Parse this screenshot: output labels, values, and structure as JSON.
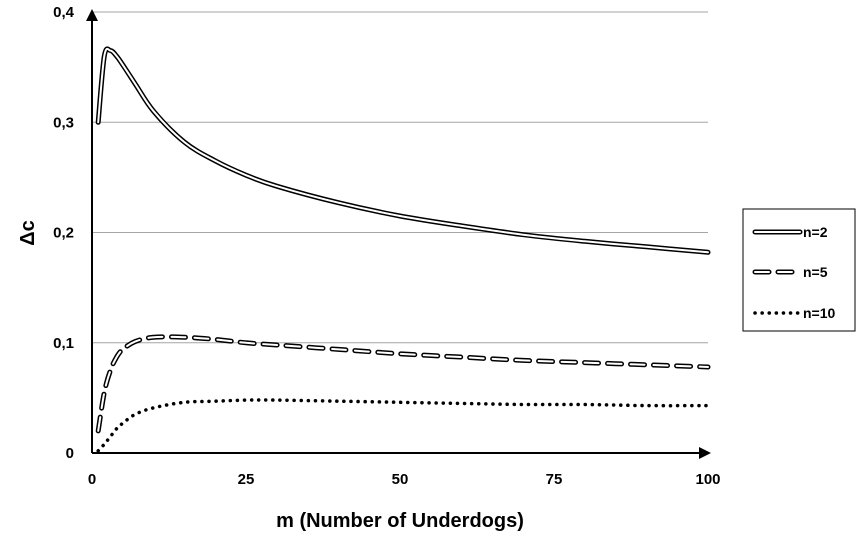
{
  "chart_data": {
    "type": "line",
    "xlabel": "m (Number of Underdogs)",
    "ylabel": "Δc",
    "xlim": [
      0,
      100
    ],
    "ylim": [
      0,
      0.4
    ],
    "x_ticks": [
      0,
      25,
      50,
      75,
      100
    ],
    "x_tick_labels": [
      "0",
      "25",
      "50",
      "75",
      "100"
    ],
    "y_ticks": [
      0,
      0.1,
      0.2,
      0.3,
      0.4
    ],
    "y_tick_labels": [
      "0",
      "0,1",
      "0,2",
      "0,3",
      "0,4"
    ],
    "grid": "horizontal",
    "legend_position": "right",
    "series": [
      {
        "name": "n=2",
        "style": "double",
        "x": [
          1,
          2,
          3,
          4,
          5,
          7,
          10,
          15,
          20,
          25,
          30,
          40,
          50,
          60,
          70,
          80,
          90,
          100
        ],
        "values": [
          0.3,
          0.36,
          0.365,
          0.36,
          0.352,
          0.335,
          0.31,
          0.282,
          0.265,
          0.252,
          0.242,
          0.227,
          0.215,
          0.206,
          0.198,
          0.192,
          0.187,
          0.182
        ]
      },
      {
        "name": "n=5",
        "style": "dashed",
        "x": [
          1,
          2,
          3,
          4,
          5,
          7,
          10,
          15,
          20,
          25,
          30,
          40,
          50,
          60,
          70,
          80,
          90,
          100
        ],
        "values": [
          0.02,
          0.055,
          0.075,
          0.087,
          0.094,
          0.101,
          0.105,
          0.105,
          0.103,
          0.1,
          0.098,
          0.094,
          0.09,
          0.087,
          0.084,
          0.082,
          0.08,
          0.078
        ]
      },
      {
        "name": "n=10",
        "style": "dotted",
        "x": [
          1,
          2,
          3,
          4,
          5,
          7,
          10,
          15,
          20,
          25,
          30,
          40,
          50,
          60,
          70,
          80,
          90,
          100
        ],
        "values": [
          0.002,
          0.008,
          0.015,
          0.022,
          0.027,
          0.035,
          0.041,
          0.046,
          0.047,
          0.048,
          0.048,
          0.047,
          0.046,
          0.045,
          0.044,
          0.044,
          0.043,
          0.043
        ]
      }
    ]
  }
}
